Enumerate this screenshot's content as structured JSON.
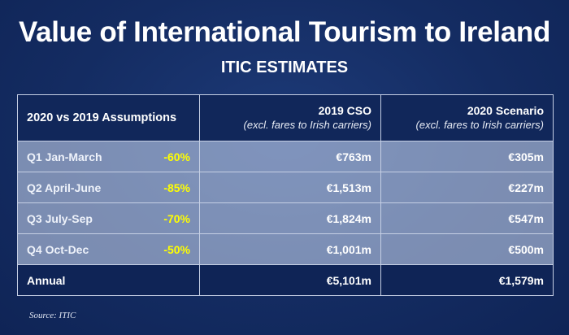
{
  "title": "Value of International Tourism to Ireland",
  "subtitle": "ITIC ESTIMATES",
  "source": "Source: ITIC",
  "colors": {
    "background": "#142c62",
    "highlight": "#ffff00",
    "row_fill": "#a9b7d3"
  },
  "chart_data": {
    "type": "table",
    "columns": [
      {
        "label": "2020 vs 2019 Assumptions",
        "sublabel": ""
      },
      {
        "label": "2019 CSO",
        "sublabel": "(excl. fares to Irish carriers)"
      },
      {
        "label": "2020 Scenario",
        "sublabel": "(excl. fares to Irish carriers)"
      }
    ],
    "rows": [
      {
        "period": "Q1 Jan-March",
        "change": "-60%",
        "cso_2019": "€763m",
        "scenario_2020": "€305m"
      },
      {
        "period": "Q2 April-June",
        "change": "-85%",
        "cso_2019": "€1,513m",
        "scenario_2020": "€227m"
      },
      {
        "period": "Q3 July-Sep",
        "change": "-70%",
        "cso_2019": "€1,824m",
        "scenario_2020": "€547m"
      },
      {
        "period": "Q4 Oct-Dec",
        "change": "-50%",
        "cso_2019": "€1,001m",
        "scenario_2020": "€500m"
      }
    ],
    "total": {
      "period": "Annual",
      "cso_2019": "€5,101m",
      "scenario_2020": "€1,579m"
    }
  }
}
